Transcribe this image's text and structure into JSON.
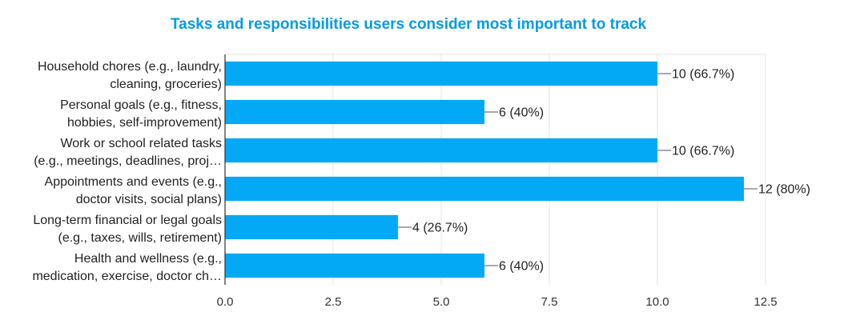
{
  "chart_data": {
    "type": "bar",
    "orientation": "horizontal",
    "title": "Tasks and responsibilities users consider most important to track",
    "categories": [
      [
        "Household chores (e.g., laundry,",
        "cleaning, groceries)"
      ],
      [
        "Personal goals (e.g., fitness,",
        "hobbies, self-improvement)"
      ],
      [
        "Work or school related tasks",
        "(e.g., meetings, deadlines, proj…"
      ],
      [
        "Appointments and events (e.g.,",
        "doctor visits, social plans)"
      ],
      [
        "Long-term financial or legal goals",
        "(e.g., taxes, wills, retirement)"
      ],
      [
        "Health and wellness (e.g.,",
        "medication, exercise, doctor ch…"
      ]
    ],
    "values": [
      10,
      6,
      10,
      12,
      4,
      6
    ],
    "data_labels": [
      "10 (66.7%)",
      "6 (40%)",
      "10 (66.7%)",
      "12 (80%)",
      "4 (26.7%)",
      "6 (40%)"
    ],
    "xlim": [
      0,
      12.5
    ],
    "xticks": [
      0,
      2.5,
      5,
      7.5,
      10,
      12.5
    ],
    "xtick_labels": [
      "0.0",
      "2.5",
      "5.0",
      "7.5",
      "10.0",
      "12.5"
    ],
    "grid": true,
    "bar_color": "#03a9f4",
    "title_color": "#039be5"
  }
}
